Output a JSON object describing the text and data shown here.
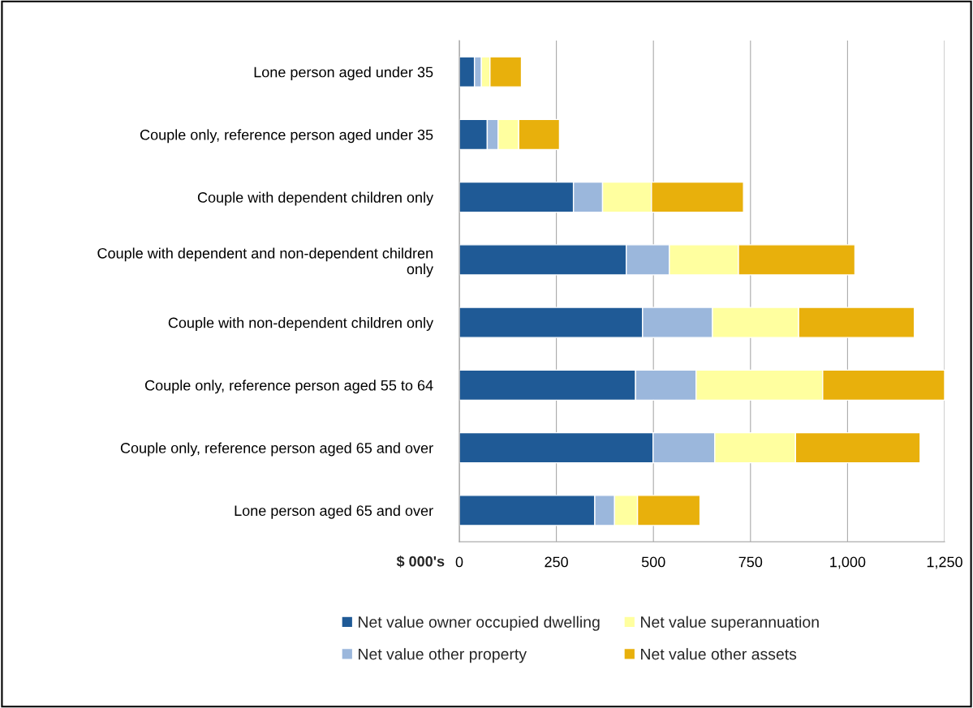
{
  "chart_data": {
    "type": "bar",
    "orientation": "horizontal",
    "stacked": true,
    "xlabel": "$ 000's",
    "categories": [
      "Lone person aged under 35",
      "Couple only, reference person aged under 35",
      "Couple with dependent children only",
      "Couple with dependent and non-dependent children\nonly",
      "Couple with non-dependent children only",
      "Couple only, reference person aged 55 to 64",
      "Couple only, reference person aged 65 and over",
      "Lone person aged 65 and over"
    ],
    "series": [
      {
        "name": "Net value owner occupied dwelling",
        "color": "#1f5a96",
        "values": [
          39,
          72,
          294,
          430,
          472,
          454,
          499,
          349
        ]
      },
      {
        "name": "Net value other property",
        "color": "#9bb7dc",
        "values": [
          18,
          28,
          75,
          111,
          180,
          156,
          159,
          51
        ]
      },
      {
        "name": "Net value superannuation",
        "color": "#ffff9f",
        "values": [
          22,
          53,
          126,
          178,
          222,
          326,
          208,
          59
        ]
      },
      {
        "name": "Net value other assets",
        "color": "#e8b00c",
        "values": [
          81,
          105,
          237,
          300,
          298,
          314,
          321,
          161
        ]
      }
    ],
    "xlim": [
      0,
      1250
    ],
    "xticks": [
      0,
      250,
      500,
      750,
      {
        "value": 1000,
        "label": "1,000"
      },
      {
        "value": 1250,
        "label": "1,250"
      }
    ],
    "grid": "x",
    "legend": "bottom"
  }
}
